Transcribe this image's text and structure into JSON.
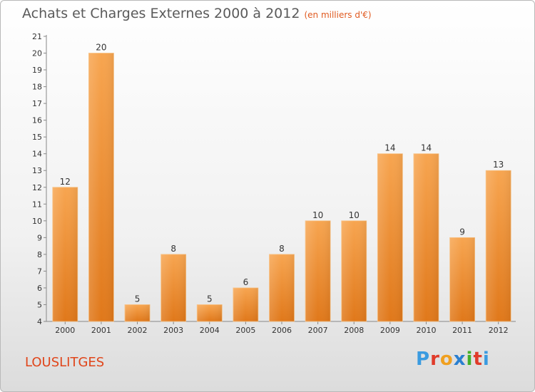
{
  "header": {
    "title": "Achats et Charges Externes 2000 à 2012",
    "unit": "(en milliers d'€)"
  },
  "footer": {
    "commune": "LOUSLITGES",
    "logo_letters": [
      "P",
      "r",
      "o",
      "x",
      "i",
      "t",
      "i"
    ],
    "logo_colors": [
      "#3b9be0",
      "#e03b2a",
      "#f0a020",
      "#2a7fd0",
      "#43b02a",
      "#e03b2a",
      "#3b9be0"
    ]
  },
  "colors": {
    "bar_top": "#f7a550",
    "bar_bottom": "#e0781a",
    "axis": "#888888",
    "text": "#333333"
  },
  "chart_data": {
    "type": "bar",
    "title": "Achats et Charges Externes 2000 à 2012",
    "ylabel": "en milliers d'€",
    "xlabel": "",
    "categories": [
      "2000",
      "2001",
      "2002",
      "2003",
      "2004",
      "2005",
      "2006",
      "2007",
      "2008",
      "2009",
      "2010",
      "2011",
      "2012"
    ],
    "values": [
      12,
      20,
      5,
      8,
      5,
      6,
      8,
      10,
      10,
      14,
      14,
      9,
      13
    ],
    "ylim": [
      4,
      21
    ],
    "yticks": [
      4,
      5,
      6,
      7,
      8,
      9,
      10,
      11,
      12,
      13,
      14,
      15,
      16,
      17,
      18,
      19,
      20,
      21
    ],
    "grid": false,
    "legend": "none"
  }
}
